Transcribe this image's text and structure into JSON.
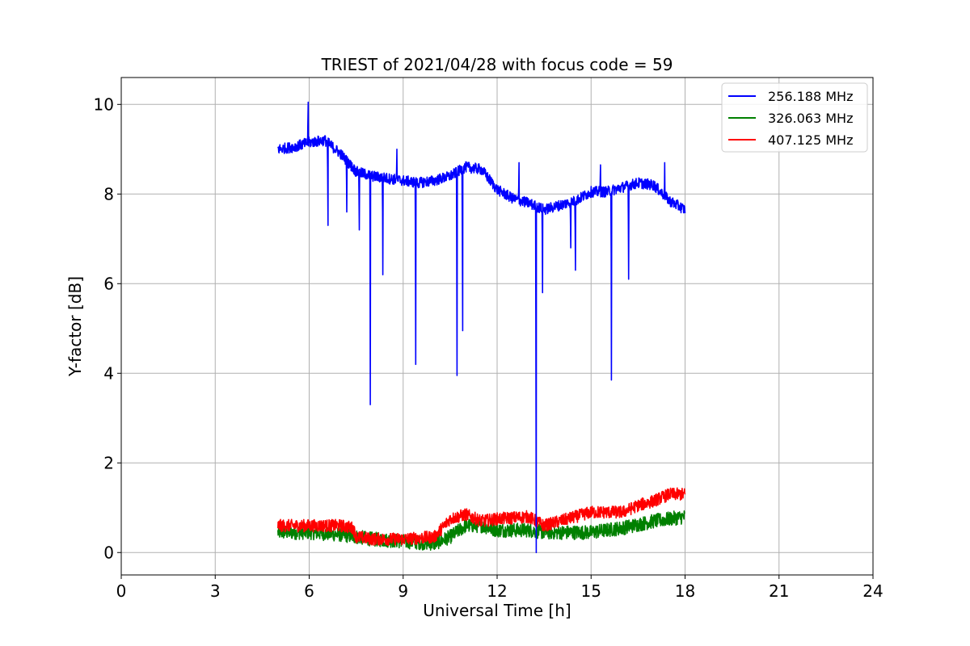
{
  "chart_data": {
    "type": "line",
    "title": "TRIEST of 2021/04/28 with focus code = 59",
    "xlabel": "Universal Time [h]",
    "ylabel": "Y-factor [dB]",
    "xlim": [
      0,
      24
    ],
    "ylim": [
      -0.5,
      10.6
    ],
    "xticks": [
      0,
      3,
      6,
      9,
      12,
      15,
      18,
      21,
      24
    ],
    "yticks": [
      0,
      2,
      4,
      6,
      8,
      10
    ],
    "grid": true,
    "legend_position": "top-right",
    "series": [
      {
        "name": "256.188 MHz",
        "color": "#0000ff",
        "base": [
          [
            5.0,
            9.0
          ],
          [
            5.5,
            9.05
          ],
          [
            6.0,
            9.15
          ],
          [
            6.5,
            9.2
          ],
          [
            7.0,
            8.9
          ],
          [
            7.5,
            8.5
          ],
          [
            8.0,
            8.4
          ],
          [
            8.5,
            8.35
          ],
          [
            9.0,
            8.3
          ],
          [
            9.5,
            8.25
          ],
          [
            10.0,
            8.3
          ],
          [
            10.5,
            8.4
          ],
          [
            11.0,
            8.6
          ],
          [
            11.5,
            8.55
          ],
          [
            12.0,
            8.1
          ],
          [
            12.5,
            7.9
          ],
          [
            13.0,
            7.8
          ],
          [
            13.5,
            7.65
          ],
          [
            14.0,
            7.75
          ],
          [
            14.5,
            7.85
          ],
          [
            15.0,
            8.05
          ],
          [
            15.5,
            8.05
          ],
          [
            16.0,
            8.15
          ],
          [
            16.5,
            8.25
          ],
          [
            17.0,
            8.2
          ],
          [
            17.5,
            7.85
          ],
          [
            18.0,
            7.65
          ]
        ],
        "noise": 0.12,
        "spikes": [
          [
            5.97,
            10.05
          ],
          [
            6.6,
            7.3
          ],
          [
            7.2,
            7.6
          ],
          [
            7.6,
            7.2
          ],
          [
            7.95,
            3.3
          ],
          [
            8.35,
            6.2
          ],
          [
            9.4,
            4.2
          ],
          [
            10.72,
            3.95
          ],
          [
            10.9,
            4.95
          ],
          [
            13.25,
            0.0
          ],
          [
            13.45,
            5.8
          ],
          [
            14.35,
            6.8
          ],
          [
            14.5,
            6.3
          ],
          [
            15.65,
            3.85
          ],
          [
            16.2,
            6.1
          ],
          [
            8.8,
            9.0
          ],
          [
            12.7,
            8.7
          ],
          [
            15.3,
            8.65
          ],
          [
            17.35,
            8.7
          ]
        ]
      },
      {
        "name": "326.063 MHz",
        "color": "#008000",
        "base": [
          [
            5.0,
            0.45
          ],
          [
            6.0,
            0.45
          ],
          [
            7.0,
            0.4
          ],
          [
            8.0,
            0.3
          ],
          [
            9.0,
            0.25
          ],
          [
            10.0,
            0.2
          ],
          [
            10.5,
            0.35
          ],
          [
            11.0,
            0.6
          ],
          [
            11.5,
            0.6
          ],
          [
            12.0,
            0.5
          ],
          [
            13.0,
            0.5
          ],
          [
            13.5,
            0.45
          ],
          [
            14.0,
            0.45
          ],
          [
            15.0,
            0.45
          ],
          [
            16.0,
            0.55
          ],
          [
            17.0,
            0.7
          ],
          [
            18.0,
            0.8
          ]
        ],
        "noise": 0.16,
        "spikes": []
      },
      {
        "name": "407.125 MHz",
        "color": "#ff0000",
        "base": [
          [
            5.0,
            0.6
          ],
          [
            6.0,
            0.6
          ],
          [
            7.0,
            0.6
          ],
          [
            7.4,
            0.55
          ],
          [
            7.5,
            0.35
          ],
          [
            8.0,
            0.3
          ],
          [
            9.0,
            0.3
          ],
          [
            10.0,
            0.35
          ],
          [
            10.5,
            0.75
          ],
          [
            11.0,
            0.85
          ],
          [
            11.5,
            0.7
          ],
          [
            12.0,
            0.75
          ],
          [
            13.0,
            0.8
          ],
          [
            13.5,
            0.6
          ],
          [
            14.0,
            0.7
          ],
          [
            15.0,
            0.9
          ],
          [
            16.0,
            0.9
          ],
          [
            16.5,
            1.05
          ],
          [
            17.0,
            1.15
          ],
          [
            17.5,
            1.3
          ],
          [
            18.0,
            1.3
          ]
        ],
        "noise": 0.14,
        "spikes": []
      }
    ]
  }
}
